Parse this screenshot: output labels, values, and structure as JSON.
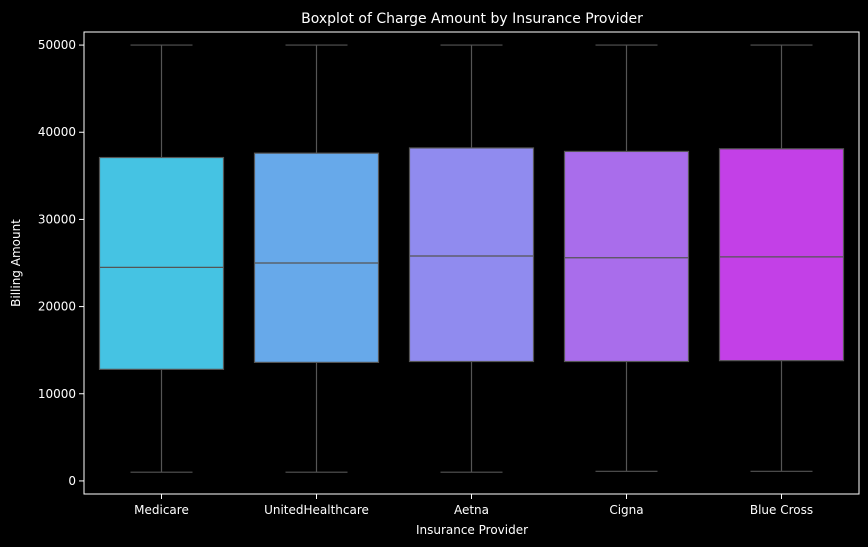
{
  "chart_data": {
    "type": "box",
    "title": "Boxplot of Charge Amount by Insurance Provider",
    "xlabel": "Insurance Provider",
    "ylabel": "Billing Amount",
    "ylim": [
      -1500,
      51500
    ],
    "yticks": [
      0,
      10000,
      20000,
      30000,
      40000,
      50000
    ],
    "grid": false,
    "categories": [
      "Medicare",
      "UnitedHealthcare",
      "Aetna",
      "Cigna",
      "Blue Cross"
    ],
    "boxes": [
      {
        "min": 1000,
        "q1": 12800,
        "median": 24500,
        "q3": 37100,
        "max": 50000
      },
      {
        "min": 1000,
        "q1": 13600,
        "median": 25000,
        "q3": 37600,
        "max": 50000
      },
      {
        "min": 1000,
        "q1": 13700,
        "median": 25800,
        "q3": 38200,
        "max": 50000
      },
      {
        "min": 1100,
        "q1": 13700,
        "median": 25600,
        "q3": 37800,
        "max": 50000
      },
      {
        "min": 1100,
        "q1": 13800,
        "median": 25700,
        "q3": 38100,
        "max": 50000
      }
    ],
    "colors": [
      "#45c3e3",
      "#67a9ea",
      "#908bef",
      "#a96deb",
      "#c340e7"
    ]
  }
}
